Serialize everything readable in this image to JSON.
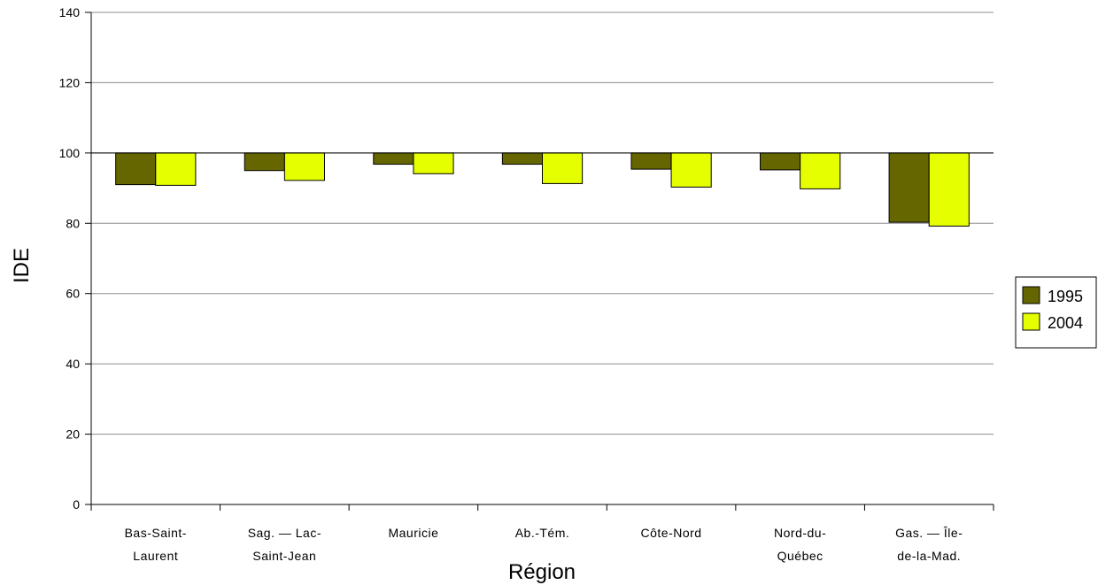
{
  "chart_data": {
    "type": "bar",
    "categories": [
      [
        "Bas-Saint-",
        "Laurent"
      ],
      [
        "Sag. — Lac-",
        "Saint-Jean"
      ],
      [
        "Mauricie"
      ],
      [
        "Ab.-Tém."
      ],
      [
        "Côte-Nord"
      ],
      [
        "Nord-du-",
        "Québec"
      ],
      [
        "Gas. — Île-",
        "de-la-Mad."
      ]
    ],
    "series": [
      {
        "name": "1995",
        "color": "#666600",
        "values": [
          91,
          95,
          96.8,
          96.8,
          95.4,
          95.2,
          80.3
        ]
      },
      {
        "name": "2004",
        "color": "#e5ff00",
        "values": [
          90.8,
          92.2,
          94.1,
          91.3,
          90.3,
          89.8,
          79.2
        ]
      }
    ],
    "baseline": 100,
    "ylim": [
      0,
      140
    ],
    "yticks": [
      0,
      20,
      40,
      60,
      80,
      100,
      120,
      140
    ],
    "xlabel": "Région",
    "ylabel": "IDE",
    "grid": true,
    "legend": "right"
  }
}
